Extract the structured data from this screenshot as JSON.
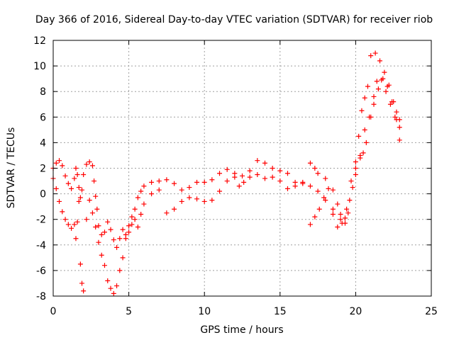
{
  "chart_data": {
    "type": "scatter",
    "title": "Day 366 of 2016, Sidereal Day-to-day VTEC variation (SDTVAR) for receiver riob",
    "xlabel": "GPS time / hours",
    "ylabel": "SDTVAR / TECUs",
    "xlim": [
      0,
      25
    ],
    "ylim": [
      -8,
      12
    ],
    "x_ticks": [
      "0",
      "5",
      "10",
      "15",
      "20",
      "25"
    ],
    "y_ticks": [
      "-8",
      "-6",
      "-4",
      "-2",
      "0",
      "2",
      "4",
      "6",
      "8",
      "10",
      "12"
    ],
    "x_tick_values": [
      0,
      5,
      10,
      15,
      20,
      25
    ],
    "y_tick_values": [
      -8,
      -6,
      -4,
      -2,
      0,
      2,
      4,
      6,
      8,
      10,
      12
    ],
    "grid": true,
    "marker": "+",
    "color": "#ff0000",
    "series": [
      {
        "points": [
          [
            0.0,
            2.0
          ],
          [
            0.2,
            2.4
          ],
          [
            0.4,
            2.6
          ],
          [
            0.6,
            2.2
          ],
          [
            0.8,
            1.4
          ],
          [
            1.0,
            0.8
          ],
          [
            1.2,
            0.4
          ],
          [
            1.4,
            1.2
          ],
          [
            1.5,
            2.0
          ],
          [
            1.6,
            1.5
          ],
          [
            1.7,
            0.5
          ],
          [
            1.8,
            -0.3
          ],
          [
            1.9,
            0.3
          ],
          [
            2.0,
            1.5
          ],
          [
            2.2,
            2.3
          ],
          [
            2.4,
            2.5
          ],
          [
            2.6,
            2.2
          ],
          [
            2.7,
            1.0
          ],
          [
            2.8,
            -0.2
          ],
          [
            2.9,
            -1.2
          ],
          [
            3.0,
            -2.5
          ],
          [
            3.2,
            -3.2
          ],
          [
            3.4,
            -3.0
          ],
          [
            3.6,
            -2.2
          ],
          [
            3.8,
            -2.8
          ],
          [
            4.0,
            -3.6
          ],
          [
            4.2,
            -4.2
          ],
          [
            4.4,
            -3.5
          ],
          [
            4.6,
            -2.8
          ],
          [
            4.8,
            -3.2
          ],
          [
            5.0,
            -2.5
          ],
          [
            5.2,
            -1.8
          ],
          [
            5.4,
            -1.2
          ],
          [
            5.6,
            -0.3
          ],
          [
            5.8,
            0.2
          ],
          [
            6.0,
            0.6
          ],
          [
            6.5,
            0.9
          ],
          [
            7.0,
            1.0
          ],
          [
            7.5,
            1.1
          ],
          [
            8.0,
            0.8
          ],
          [
            8.5,
            0.3
          ],
          [
            9.0,
            0.5
          ],
          [
            9.5,
            0.9
          ],
          [
            10.0,
            0.9
          ],
          [
            10.5,
            1.1
          ],
          [
            11.0,
            1.6
          ],
          [
            11.5,
            1.9
          ],
          [
            12.0,
            1.6
          ],
          [
            12.3,
            0.6
          ],
          [
            12.6,
            0.9
          ],
          [
            13.0,
            1.8
          ],
          [
            13.5,
            2.6
          ],
          [
            14.0,
            2.4
          ],
          [
            14.5,
            2.0
          ],
          [
            15.0,
            1.8
          ],
          [
            15.5,
            1.6
          ],
          [
            16.0,
            0.9
          ],
          [
            16.5,
            0.8
          ],
          [
            17.0,
            0.6
          ],
          [
            17.5,
            0.2
          ],
          [
            18.0,
            -0.5
          ],
          [
            18.5,
            -1.2
          ],
          [
            19.0,
            -1.6
          ],
          [
            19.3,
            -1.9
          ],
          [
            19.5,
            -1.5
          ],
          [
            19.8,
            0.5
          ],
          [
            20.0,
            2.5
          ],
          [
            20.2,
            4.5
          ],
          [
            20.4,
            6.5
          ],
          [
            20.6,
            7.5
          ],
          [
            20.8,
            8.4
          ],
          [
            21.0,
            10.8
          ],
          [
            21.3,
            11.0
          ],
          [
            21.6,
            10.4
          ],
          [
            21.9,
            9.5
          ],
          [
            22.2,
            8.5
          ],
          [
            22.5,
            7.2
          ],
          [
            22.7,
            5.8
          ],
          [
            22.9,
            4.2
          ]
        ]
      },
      {
        "points": [
          [
            0.0,
            1.2
          ],
          [
            0.2,
            0.4
          ],
          [
            0.4,
            -0.6
          ],
          [
            0.6,
            -1.4
          ],
          [
            0.8,
            -2.0
          ],
          [
            1.0,
            -2.4
          ],
          [
            1.2,
            -2.7
          ],
          [
            1.4,
            -2.4
          ],
          [
            1.5,
            -3.5
          ],
          [
            1.6,
            -2.2
          ],
          [
            1.7,
            -0.6
          ],
          [
            1.8,
            -5.5
          ],
          [
            1.9,
            -7.0
          ],
          [
            2.0,
            -7.6
          ],
          [
            2.2,
            -2.0
          ],
          [
            2.4,
            -0.5
          ],
          [
            2.6,
            -1.5
          ],
          [
            2.8,
            -2.6
          ],
          [
            3.0,
            -3.8
          ],
          [
            3.2,
            -4.8
          ],
          [
            3.4,
            -5.6
          ],
          [
            3.6,
            -6.8
          ],
          [
            3.8,
            -7.4
          ],
          [
            4.0,
            -7.8
          ],
          [
            4.2,
            -7.2
          ],
          [
            4.4,
            -6.0
          ],
          [
            4.6,
            -5.0
          ],
          [
            4.8,
            -3.5
          ],
          [
            5.0,
            -3.0
          ],
          [
            5.2,
            -2.4
          ],
          [
            5.4,
            -2.0
          ],
          [
            5.6,
            -2.6
          ],
          [
            5.8,
            -1.6
          ],
          [
            6.0,
            -0.8
          ],
          [
            6.5,
            0.0
          ],
          [
            7.0,
            0.3
          ],
          [
            7.5,
            -1.5
          ],
          [
            8.0,
            -1.2
          ],
          [
            8.5,
            -0.6
          ],
          [
            9.0,
            -0.3
          ],
          [
            9.5,
            -0.4
          ],
          [
            10.0,
            -0.6
          ],
          [
            10.5,
            -0.5
          ],
          [
            11.0,
            0.2
          ],
          [
            11.5,
            1.0
          ],
          [
            12.0,
            1.3
          ],
          [
            12.5,
            1.4
          ],
          [
            13.0,
            1.3
          ],
          [
            13.5,
            1.5
          ],
          [
            14.0,
            1.2
          ],
          [
            14.5,
            1.3
          ],
          [
            15.0,
            1.0
          ],
          [
            15.5,
            0.4
          ],
          [
            16.0,
            0.6
          ],
          [
            16.5,
            0.9
          ],
          [
            17.0,
            2.4
          ],
          [
            17.3,
            2.0
          ],
          [
            17.5,
            1.6
          ],
          [
            18.0,
            1.2
          ],
          [
            18.5,
            0.3
          ],
          [
            18.8,
            -0.8
          ],
          [
            19.0,
            -2.0
          ],
          [
            19.3,
            -2.3
          ],
          [
            19.6,
            -0.5
          ],
          [
            20.0,
            1.5
          ],
          [
            20.3,
            3.0
          ],
          [
            20.6,
            5.0
          ],
          [
            20.9,
            6.0
          ],
          [
            21.2,
            7.0
          ],
          [
            21.5,
            8.2
          ],
          [
            21.8,
            9.0
          ],
          [
            22.1,
            8.4
          ],
          [
            22.4,
            7.2
          ],
          [
            22.7,
            6.4
          ],
          [
            22.9,
            5.8
          ]
        ]
      },
      {
        "points": [
          [
            17.0,
            -2.4
          ],
          [
            17.3,
            -1.8
          ],
          [
            17.6,
            -1.2
          ],
          [
            17.9,
            -0.3
          ],
          [
            18.2,
            0.4
          ],
          [
            18.5,
            -1.6
          ],
          [
            18.8,
            -2.6
          ],
          [
            19.1,
            -2.3
          ],
          [
            19.4,
            -1.2
          ],
          [
            19.7,
            1.0
          ],
          [
            20.0,
            2.0
          ],
          [
            20.3,
            2.8
          ],
          [
            20.5,
            3.2
          ],
          [
            20.7,
            4.0
          ],
          [
            21.0,
            6.0
          ],
          [
            21.2,
            7.6
          ],
          [
            21.4,
            8.8
          ],
          [
            21.7,
            8.9
          ],
          [
            22.0,
            8.0
          ],
          [
            22.3,
            7.0
          ],
          [
            22.6,
            6.0
          ],
          [
            22.9,
            5.2
          ]
        ]
      }
    ]
  }
}
